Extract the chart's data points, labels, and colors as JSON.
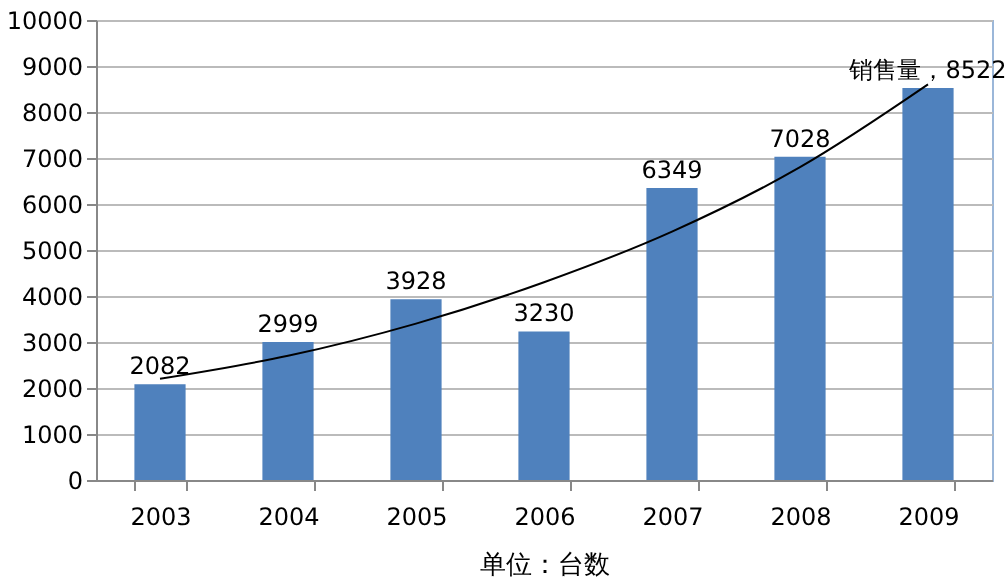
{
  "chart_data": {
    "type": "bar",
    "xlabel": "单位：台数",
    "categories": [
      "2003",
      "2004",
      "2005",
      "2006",
      "2007",
      "2008",
      "2009"
    ],
    "series": [
      {
        "color": "#4f81bd",
        "values": [
          2082,
          2999,
          3928,
          3230,
          6349,
          7028,
          8522
        ],
        "value_labels": [
          "2082",
          "2999",
          "3928",
          "3230",
          "6349",
          "7028",
          "销售量，8522"
        ]
      },
      {
        "type": "line",
        "color": "#000000",
        "values": [
          2200,
          2700,
          3400,
          4300,
          5400,
          6800,
          8600
        ]
      }
    ],
    "ylim": [
      0,
      10000
    ],
    "yticks": [
      0,
      1000,
      2000,
      3000,
      4000,
      5000,
      6000,
      7000,
      8000,
      9000,
      10000
    ],
    "grid": "y",
    "marker": "none",
    "line_style": "solid"
  }
}
